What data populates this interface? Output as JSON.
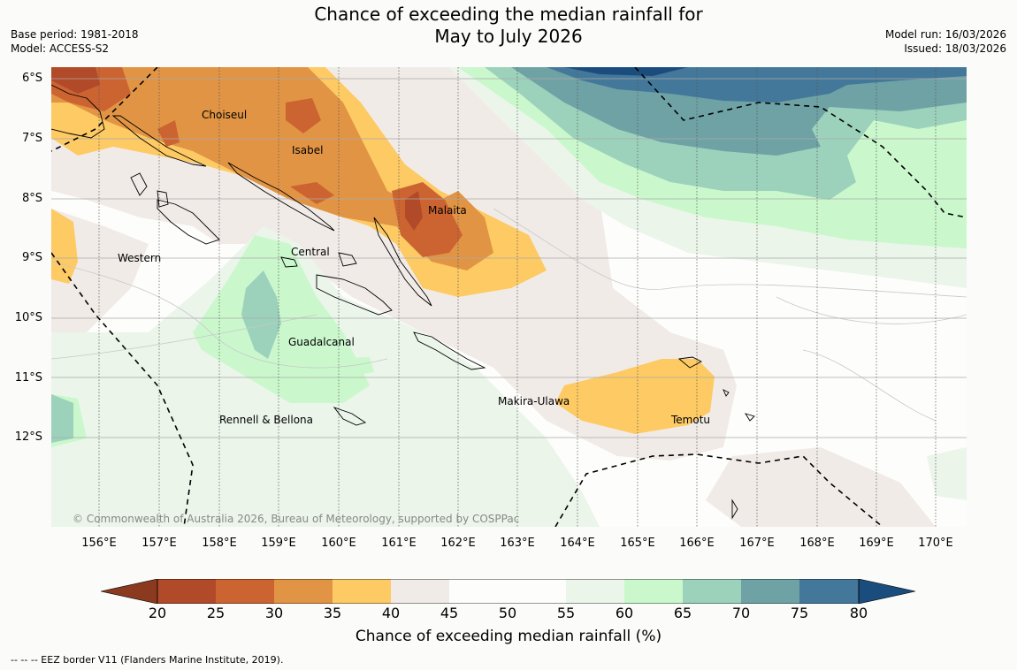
{
  "title_line1": "Chance of exceeding the median rainfall for",
  "title_line2": "May to July 2026",
  "meta": {
    "base_period": "Base period: 1981-2018",
    "model": "Model: ACCESS-S2",
    "model_run": "Model run: 16/03/2026",
    "issued": "Issued: 18/03/2026"
  },
  "lat_labels": [
    "6°S",
    "7°S",
    "8°S",
    "9°S",
    "10°S",
    "11°S",
    "12°S"
  ],
  "lon_labels": [
    "156°E",
    "157°E",
    "158°E",
    "159°E",
    "160°E",
    "161°E",
    "162°E",
    "163°E",
    "164°E",
    "165°E",
    "166°E",
    "167°E",
    "168°E",
    "169°E",
    "170°E"
  ],
  "places": {
    "choiseul": "Choiseul",
    "isabel": "Isabel",
    "malaita": "Malaita",
    "western": "Western",
    "central": "Central",
    "guadalcanal": "Guadalcanal",
    "rennell": "Rennell & Bellona",
    "makira": "Makira-Ulawa",
    "temotu": "Temotu"
  },
  "copyright": "© Commonwealth of Australia 2026, Bureau of Meteorology, supported by COSPPac",
  "colorbar": {
    "title": "Chance of exceeding median rainfall (%)",
    "ticks": [
      "20",
      "25",
      "30",
      "35",
      "40",
      "45",
      "50",
      "55",
      "60",
      "65",
      "70",
      "75",
      "80"
    ],
    "colors": {
      "below20": "#8b3a1f",
      "c20_25": "#b14a28",
      "c25_30": "#cc6432",
      "c30_35": "#e19444",
      "c35_40": "#fdca64",
      "c40_45": "#f1ebe7",
      "c45_50": "#fdfdfb",
      "c50_55": "#fdfdfb",
      "c55_60": "#ebf5ea",
      "c60_65": "#caf8cc",
      "c65_70": "#9cd2bc",
      "c70_75": "#6fa2a5",
      "c75_80": "#43789a",
      "above80": "#1a4d7e"
    }
  },
  "eez_note": "--  --  -- EEZ border V11 (Flanders Marine Institute, 2019)."
}
